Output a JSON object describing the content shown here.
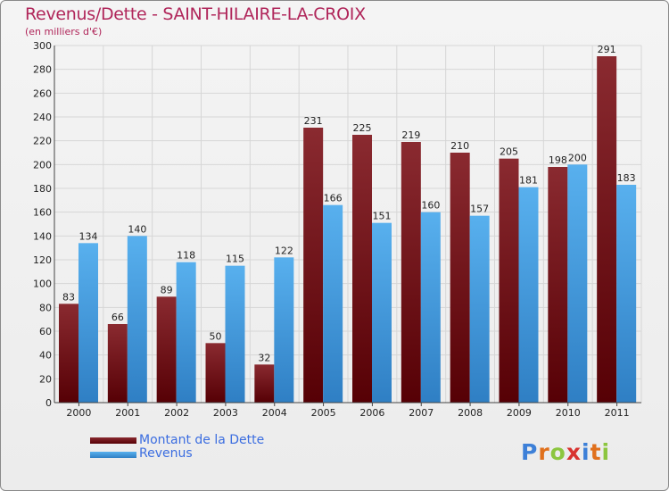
{
  "header": {
    "title": "Revenus/Dette - SAINT-HILAIRE-LA-CROIX",
    "subtitle": "(en milliers d'€)"
  },
  "legend": {
    "items": [
      {
        "label": "Montant de la Dette",
        "color": "#6b1016"
      },
      {
        "label": "Revenus",
        "color": "#4aa3e6"
      }
    ]
  },
  "branding": {
    "logo_letters": [
      "P",
      "r",
      "o",
      "x",
      "i",
      "t",
      "i"
    ],
    "logo_colors": [
      "#3d80d8",
      "#e0701c",
      "#8cc63f",
      "#d8332f",
      "#3d80d8",
      "#e0701c",
      "#8cc63f"
    ]
  },
  "chart_data": {
    "type": "bar",
    "title": "Revenus/Dette - SAINT-HILAIRE-LA-CROIX",
    "subtitle": "(en milliers d'€)",
    "categories": [
      "2000",
      "2001",
      "2002",
      "2003",
      "2004",
      "2005",
      "2006",
      "2007",
      "2008",
      "2009",
      "2010",
      "2011"
    ],
    "series": [
      {
        "name": "Montant de la Dette",
        "color": "#6b1016",
        "values": [
          83,
          66,
          89,
          50,
          32,
          231,
          225,
          219,
          210,
          205,
          198,
          291
        ]
      },
      {
        "name": "Revenus",
        "color": "#4aa3e6",
        "values": [
          134,
          140,
          118,
          115,
          122,
          166,
          151,
          160,
          157,
          181,
          200,
          183
        ]
      }
    ],
    "ylim": [
      0,
      300
    ],
    "ytick_step": 20,
    "grid": true,
    "legend_position": "bottom-left"
  }
}
